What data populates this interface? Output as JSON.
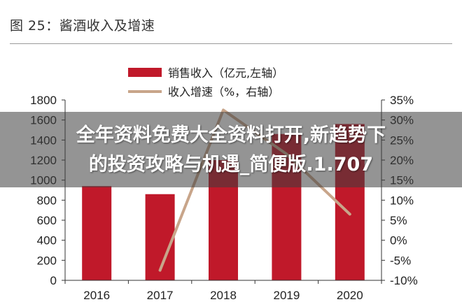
{
  "figure_title": "图 25：酱酒收入及增速",
  "overlay": {
    "line1": "全年资料免费大全资料打开,新趋势下",
    "line2": "的投资攻略与机遇_简便版.1.707"
  },
  "colors": {
    "bar": "#C0192A",
    "line": "#C8A58A",
    "axis": "#333333",
    "text": "#222222"
  },
  "chart_data": {
    "type": "bar",
    "categories": [
      "2016",
      "2017",
      "2018",
      "2019",
      "2020"
    ],
    "series": [
      {
        "name": "销售收入（亿元,左轴）",
        "type": "bar",
        "axis": "left",
        "values": [
          940,
          860,
          1200,
          1460,
          1560
        ]
      },
      {
        "name": "收入增速（%，右轴）",
        "type": "line",
        "axis": "right",
        "values": [
          null,
          -7.5,
          32.5,
          21.5,
          6.5
        ]
      }
    ],
    "left_axis": {
      "ylim": [
        0,
        1800
      ],
      "ticks": [
        "0",
        "200",
        "400",
        "600",
        "800",
        "1000",
        "1200",
        "1400",
        "1600",
        "1800"
      ]
    },
    "right_axis": {
      "ylim": [
        -10,
        35
      ],
      "ticks": [
        "-10%",
        "-5%",
        "0%",
        "5%",
        "10%",
        "15%",
        "20%",
        "25%",
        "30%",
        "35%"
      ]
    },
    "legend_position": "top-center",
    "grid": false
  }
}
